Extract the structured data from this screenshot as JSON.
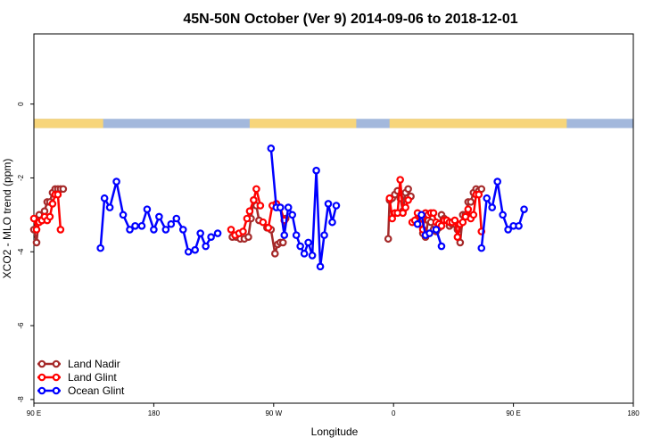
{
  "chart_data": {
    "type": "line",
    "title": "45N-50N October (Ver 9)   2014-09-06 to 2018-12-01",
    "xlabel": "Longitude",
    "ylabel": "XCO2 - MLO trend (ppm)",
    "xlim": [
      90,
      540
    ],
    "ylim": [
      -8.1,
      1.9
    ],
    "x_ticks": [
      {
        "value": 90,
        "label": "90 E"
      },
      {
        "value": 180,
        "label": "180"
      },
      {
        "value": 270,
        "label": "90 W"
      },
      {
        "value": 360,
        "label": "0"
      },
      {
        "value": 450,
        "label": "90 E"
      },
      {
        "value": 540,
        "label": "180"
      }
    ],
    "y_ticks": [
      {
        "value": 0,
        "label": "0"
      },
      {
        "value": -2,
        "label": "-2"
      },
      {
        "value": -4,
        "label": "-4"
      },
      {
        "value": -6,
        "label": "-6"
      },
      {
        "value": -8,
        "label": "-8"
      }
    ],
    "legend_position": "bottom-left",
    "land_mask": {
      "y_range": [
        -0.4,
        -0.65
      ],
      "land_color": "#f7d57a",
      "ocean_color": "#a3b8dc",
      "land_segments": [
        [
          90,
          142
        ],
        [
          252,
          332
        ],
        [
          357,
          490
        ],
        [
          540,
          540
        ]
      ]
    },
    "series": [
      {
        "name": "Land Nadir",
        "color": "#a52a2a",
        "segments": [
          [
            [
              90,
              -3.4
            ],
            [
              92,
              -3.75
            ],
            [
              94,
              -3.0
            ],
            [
              96,
              -3.15
            ],
            [
              98,
              -2.9
            ],
            [
              100,
              -2.65
            ],
            [
              102,
              -2.65
            ],
            [
              104,
              -2.4
            ],
            [
              106,
              -2.3
            ],
            [
              108,
              -2.3
            ],
            [
              110,
              -2.3
            ],
            [
              112,
              -2.3
            ]
          ],
          [
            [
              239,
              -3.6
            ],
            [
              242,
              -3.6
            ],
            [
              245,
              -3.65
            ],
            [
              248,
              -3.65
            ],
            [
              251,
              -3.6
            ],
            [
              253,
              -3.1
            ],
            [
              255,
              -2.6
            ],
            [
              257,
              -2.75
            ],
            [
              259,
              -3.15
            ]
          ],
          [
            [
              265,
              -3.35
            ],
            [
              268,
              -3.4
            ],
            [
              271,
              -4.05
            ],
            [
              273,
              -3.8
            ],
            [
              275,
              -3.75
            ],
            [
              277,
              -3.75
            ],
            [
              279,
              -3.1
            ]
          ],
          [
            [
              356,
              -3.65
            ],
            [
              357,
              -2.6
            ],
            [
              359,
              -2.55
            ],
            [
              361,
              -2.45
            ],
            [
              363,
              -2.35
            ],
            [
              365,
              -2.55
            ],
            [
              367,
              -2.9
            ],
            [
              369,
              -2.4
            ],
            [
              371,
              -2.3
            ],
            [
              373,
              -2.5
            ]
          ],
          [
            [
              378,
              -3.1
            ],
            [
              380,
              -3.25
            ],
            [
              382,
              -3.5
            ],
            [
              384,
              -3.6
            ],
            [
              386,
              -3.15
            ],
            [
              388,
              -3.2
            ],
            [
              390,
              -3.4
            ],
            [
              392,
              -3.45
            ],
            [
              394,
              -3.35
            ],
            [
              396,
              -3.0
            ],
            [
              398,
              -3.1
            ],
            [
              400,
              -3.15
            ],
            [
              402,
              -3.3
            ],
            [
              404,
              -3.25
            ],
            [
              406,
              -3.25
            ],
            [
              408,
              -3.4
            ],
            [
              410,
              -3.75
            ],
            [
              412,
              -3.0
            ],
            [
              414,
              -3.0
            ],
            [
              416,
              -2.65
            ],
            [
              418,
              -2.65
            ],
            [
              420,
              -2.4
            ],
            [
              422,
              -2.3
            ],
            [
              424,
              -2.35
            ],
            [
              426,
              -2.3
            ]
          ]
        ]
      },
      {
        "name": "Land Glint",
        "color": "#ff0000",
        "segments": [
          [
            [
              90,
              -3.1
            ],
            [
              92,
              -3.4
            ],
            [
              94,
              -3.2
            ],
            [
              96,
              -3.15
            ],
            [
              98,
              -3.05
            ],
            [
              100,
              -3.15
            ],
            [
              102,
              -3.05
            ],
            [
              104,
              -2.7
            ],
            [
              106,
              -2.45
            ],
            [
              108,
              -2.45
            ],
            [
              110,
              -3.4
            ]
          ],
          [
            [
              238,
              -3.4
            ],
            [
              241,
              -3.55
            ],
            [
              244,
              -3.5
            ],
            [
              247,
              -3.45
            ],
            [
              250,
              -3.1
            ],
            [
              252,
              -2.9
            ],
            [
              255,
              -2.6
            ],
            [
              257,
              -2.3
            ],
            [
              260,
              -2.75
            ]
          ],
          [
            [
              262,
              -3.2
            ],
            [
              266,
              -3.35
            ],
            [
              269,
              -2.75
            ],
            [
              272,
              -2.7
            ],
            [
              275,
              -2.8
            ],
            [
              278,
              -3.15
            ]
          ],
          [
            [
              357,
              -2.55
            ],
            [
              359,
              -3.1
            ],
            [
              361,
              -2.95
            ],
            [
              363,
              -2.95
            ],
            [
              365,
              -2.05
            ],
            [
              367,
              -2.95
            ],
            [
              369,
              -2.8
            ],
            [
              371,
              -2.6
            ]
          ],
          [
            [
              374,
              -3.2
            ],
            [
              376,
              -3.15
            ],
            [
              378,
              -2.95
            ],
            [
              380,
              -3.25
            ],
            [
              382,
              -3.4
            ],
            [
              384,
              -2.95
            ],
            [
              386,
              -3.0
            ],
            [
              388,
              -2.95
            ],
            [
              390,
              -2.95
            ],
            [
              392,
              -3.2
            ],
            [
              394,
              -3.25
            ],
            [
              396,
              -3.3
            ],
            [
              398,
              -3.15
            ],
            [
              400,
              -3.15
            ],
            [
              402,
              -3.2
            ],
            [
              404,
              -3.2
            ],
            [
              406,
              -3.15
            ],
            [
              408,
              -3.6
            ],
            [
              410,
              -3.25
            ],
            [
              412,
              -3.2
            ],
            [
              414,
              -3.05
            ],
            [
              416,
              -2.85
            ],
            [
              418,
              -3.1
            ],
            [
              420,
              -3.0
            ],
            [
              422,
              -2.45
            ],
            [
              424,
              -2.45
            ],
            [
              426,
              -3.45
            ]
          ]
        ]
      },
      {
        "name": "Ocean Glint",
        "color": "#0000ff",
        "segments": [
          [
            [
              140,
              -3.9
            ],
            [
              143,
              -2.55
            ],
            [
              147,
              -2.8
            ],
            [
              152,
              -2.1
            ],
            [
              157,
              -3.0
            ],
            [
              162,
              -3.4
            ],
            [
              166,
              -3.3
            ],
            [
              171,
              -3.3
            ],
            [
              175,
              -2.85
            ],
            [
              180,
              -3.4
            ],
            [
              184,
              -3.05
            ],
            [
              189,
              -3.4
            ],
            [
              193,
              -3.25
            ],
            [
              197,
              -3.1
            ],
            [
              202,
              -3.4
            ],
            [
              206,
              -4.0
            ],
            [
              211,
              -3.95
            ],
            [
              215,
              -3.5
            ],
            [
              219,
              -3.85
            ],
            [
              223,
              -3.6
            ],
            [
              228,
              -3.5
            ]
          ],
          [
            [
              268,
              -1.2
            ],
            [
              272,
              -2.8
            ]
          ],
          [
            [
              275,
              -2.8
            ],
            [
              278,
              -3.55
            ],
            [
              281,
              -2.8
            ],
            [
              284,
              -3.0
            ],
            [
              287,
              -3.55
            ],
            [
              290,
              -3.85
            ],
            [
              293,
              -4.05
            ],
            [
              296,
              -3.75
            ],
            [
              299,
              -4.1
            ],
            [
              302,
              -1.8
            ],
            [
              305,
              -4.4
            ],
            [
              308,
              -3.55
            ],
            [
              311,
              -2.7
            ],
            [
              314,
              -3.2
            ],
            [
              317,
              -2.75
            ]
          ],
          [
            [
              378,
              -3.25
            ],
            [
              381,
              -3.0
            ],
            [
              384,
              -3.55
            ],
            [
              387,
              -3.5
            ]
          ],
          [
            [
              392,
              -3.4
            ],
            [
              396,
              -3.85
            ]
          ],
          [
            [
              426,
              -3.9
            ],
            [
              430,
              -2.55
            ],
            [
              434,
              -2.8
            ],
            [
              438,
              -2.1
            ],
            [
              442,
              -3.0
            ],
            [
              446,
              -3.4
            ],
            [
              450,
              -3.3
            ],
            [
              454,
              -3.3
            ],
            [
              458,
              -2.85
            ]
          ]
        ]
      }
    ]
  }
}
